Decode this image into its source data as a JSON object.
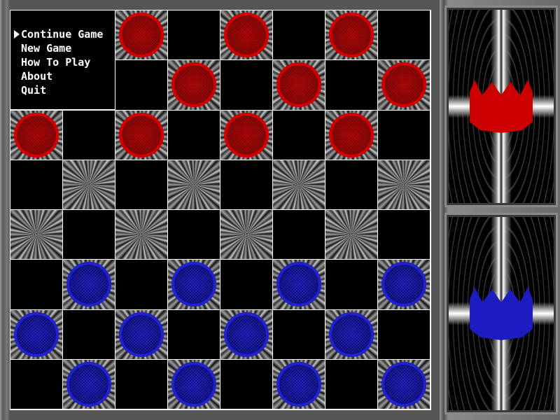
{
  "menu": {
    "items": [
      {
        "label": "Continue Game",
        "selected": true
      },
      {
        "label": "New Game",
        "selected": false
      },
      {
        "label": "How To Play",
        "selected": false
      },
      {
        "label": "About",
        "selected": false
      },
      {
        "label": "Quit",
        "selected": false
      }
    ]
  },
  "board": {
    "rows": [
      [
        "",
        "",
        "r",
        "",
        "r",
        "",
        "r",
        ""
      ],
      [
        "",
        "",
        "",
        "r",
        "",
        "r",
        "",
        "r"
      ],
      [
        "r",
        "",
        "r",
        "",
        "r",
        "",
        "r",
        ""
      ],
      [
        "",
        "",
        "",
        "",
        "",
        "",
        "",
        ""
      ],
      [
        "",
        "",
        "",
        "",
        "",
        "",
        "",
        ""
      ],
      [
        "",
        "b",
        "",
        "b",
        "",
        "b",
        "",
        "b"
      ],
      [
        "b",
        "",
        "b",
        "",
        "b",
        "",
        "b",
        ""
      ],
      [
        "",
        "b",
        "",
        "b",
        "",
        "b",
        "",
        "b"
      ]
    ]
  },
  "players": [
    {
      "color": "red",
      "hex": "#cc0000",
      "icon": "crown-icon"
    },
    {
      "color": "blue",
      "hex": "#1c1cc0",
      "icon": "crown-icon"
    }
  ]
}
